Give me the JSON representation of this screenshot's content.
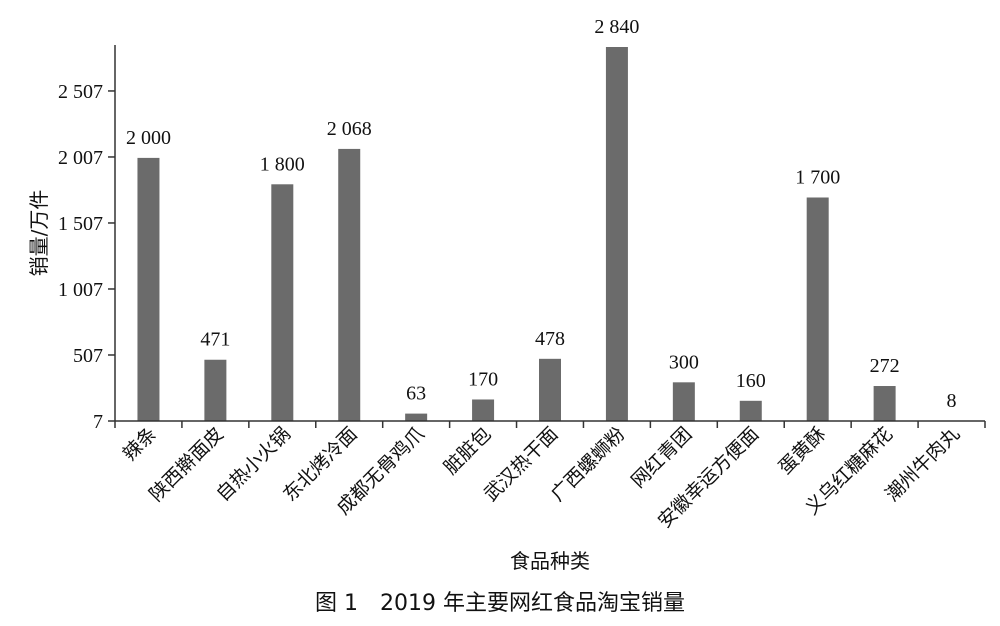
{
  "chart_data": {
    "type": "bar",
    "title": "图 1　2019 年主要网红食品淘宝销量",
    "xlabel": "食品种类",
    "ylabel": "销量/万件",
    "ylim": [
      7,
      2840
    ],
    "yticks": [
      7,
      507,
      1007,
      1507,
      2007,
      2507
    ],
    "ytick_labels": [
      "7",
      "507",
      "1 007",
      "1 507",
      "2 007",
      "2 507"
    ],
    "categories": [
      "辣条",
      "陕西擀面皮",
      "自热小火锅",
      "东北烤冷面",
      "成都无骨鸡爪",
      "脏脏包",
      "武汉热干面",
      "广西螺蛳粉",
      "网红青团",
      "安徽幸运方便面",
      "蛋黄酥",
      "义乌红糖麻花",
      "潮州牛肉丸"
    ],
    "values": [
      2000,
      471,
      1800,
      2068,
      63,
      170,
      478,
      2840,
      300,
      160,
      1700,
      272,
      8
    ],
    "value_labels": [
      "2 000",
      "471",
      "1 800",
      "2 068",
      "63",
      "170",
      "478",
      "2 840",
      "300",
      "160",
      "1 700",
      "272",
      "8"
    ],
    "bar_color": "#6b6b6b",
    "grid": false,
    "legend": "none"
  }
}
